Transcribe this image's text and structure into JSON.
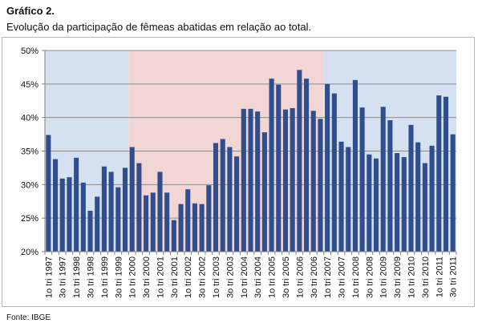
{
  "header": {
    "title": "Gráfico 2.",
    "subtitle": "Evolução da participação de fêmeas abatidas em relação ao total."
  },
  "footer": {
    "source": "Fonte: IBGE"
  },
  "chart_data": {
    "type": "bar",
    "title": "Evolução da participação de fêmeas abatidas em relação ao total.",
    "xlabel": "",
    "ylabel": "",
    "ylim": [
      20,
      50
    ],
    "y_ticks": [
      "20%",
      "25%",
      "30%",
      "35%",
      "40%",
      "45%",
      "50%"
    ],
    "y_tick_values": [
      20,
      25,
      30,
      35,
      40,
      45,
      50
    ],
    "grid": true,
    "legend": "none",
    "categories": [
      "1o tri 1997",
      "2o tri 1997",
      "3o tri 1997",
      "4o tri 1997",
      "1o tri 1998",
      "2o tri 1998",
      "3o tri 1998",
      "4o tri 1998",
      "1o tri 1999",
      "2o tri 1999",
      "3o tri 1999",
      "4o tri 1999",
      "1o tri 2000",
      "2o tri 2000",
      "3o tri 2000",
      "4o tri 2000",
      "1o tri 2001",
      "2o tri 2001",
      "3o tri 2001",
      "4o tri 2001",
      "1o tri 2002",
      "2o tri 2002",
      "3o tri 2002",
      "4o tri 2002",
      "1o tri 2003",
      "2o tri 2003",
      "3o tri 2003",
      "4o tri 2003",
      "1o tri 2004",
      "2o tri 2004",
      "3o tri 2004",
      "4o tri 2004",
      "1o tri 2005",
      "2o tri 2005",
      "3o tri 2005",
      "4o tri 2005",
      "1o tri 2006",
      "2o tri 2006",
      "3o tri 2006",
      "4o tri 2006",
      "1o tri 2007",
      "2o tri 2007",
      "3o tri 2007",
      "4o tri 2007",
      "1o tri 2008",
      "2o tri 2008",
      "3o tri 2008",
      "4o tri 2008",
      "1o tri 2009",
      "2o tri 2009",
      "3o tri 2009",
      "4o tri 2009",
      "1o tri 2010",
      "2o tri 2010",
      "3o tri 2010",
      "4o tri 2010",
      "1o tri 2011",
      "2o tri 2011",
      "3o tri 2011"
    ],
    "x_tick_labels": [
      "1o tri 1997",
      "3o tri 1997",
      "1o tri 1998",
      "3o tri 1998",
      "1o tri 1999",
      "3o tri 1999",
      "1o tri 2000",
      "3o tri 2000",
      "1o tri 2001",
      "3o tri 2001",
      "1o tri 2002",
      "3o tri 2002",
      "1o tri 2003",
      "3o tri 2003",
      "1o tri 2004",
      "3o tri 2004",
      "1o tri 2005",
      "3o tri 2005",
      "1o tri 2006",
      "3o tri 2006",
      "1o tri 2007",
      "3o tri 2007",
      "1o tri 2008",
      "3o tri 2008",
      "1o tri 2009",
      "3o tri 2009",
      "1o tri 2010",
      "3o tri 2010",
      "1o tri 2011",
      "3o tri 2011"
    ],
    "values": [
      37.4,
      33.8,
      30.9,
      31.1,
      34.0,
      30.3,
      26.1,
      28.2,
      32.7,
      31.9,
      29.6,
      32.5,
      35.6,
      33.2,
      28.4,
      28.8,
      31.9,
      28.8,
      24.7,
      27.1,
      29.3,
      27.2,
      27.1,
      29.9,
      36.2,
      36.8,
      35.6,
      34.2,
      41.3,
      41.3,
      40.9,
      37.8,
      45.8,
      44.9,
      41.2,
      41.4,
      47.1,
      45.8,
      41.0,
      39.8,
      45.0,
      43.6,
      36.4,
      35.6,
      45.6,
      41.5,
      34.5,
      33.9,
      41.6,
      39.6,
      34.7,
      34.1,
      38.9,
      36.3,
      33.2,
      35.8,
      43.3,
      43.1,
      37.5
    ],
    "bands": [
      {
        "from_index": 0,
        "to_index": 12,
        "color": "#d5e0f0"
      },
      {
        "from_index": 12,
        "to_index": 40,
        "color": "#f2d6d6"
      },
      {
        "from_index": 40,
        "to_index": 59,
        "color": "#d5e0f0"
      }
    ],
    "colors": {
      "bar": "#2f4e8b",
      "grid": "#8c8c8c",
      "axis": "#808080"
    }
  }
}
